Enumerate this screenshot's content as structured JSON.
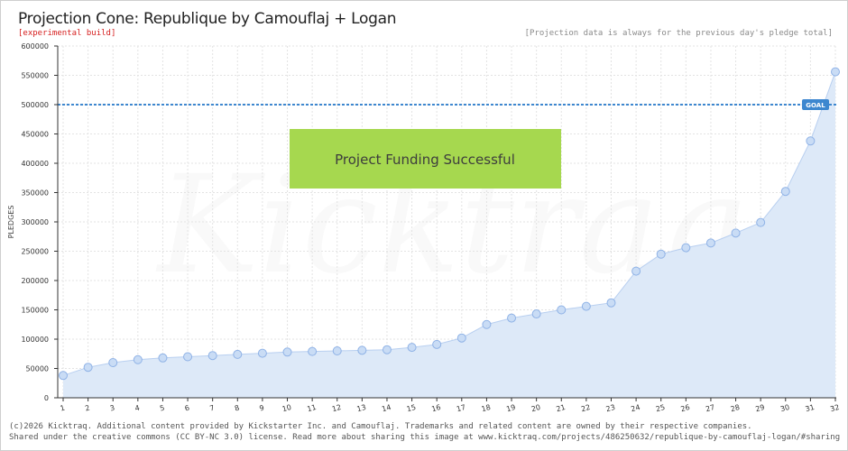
{
  "header": {
    "title": "Projection Cone: Republique by Camouflaj + Logan",
    "subtitle": "[experimental build]",
    "note": "[Projection data is always for the previous day's pledge total]"
  },
  "banner": {
    "text": "Project Funding Successful",
    "color": "#a6d84f"
  },
  "goal": {
    "label": "GOAL",
    "value": 500000,
    "color": "#3d87cf"
  },
  "colors": {
    "area": "#dde9f8",
    "line": "#b8cff0",
    "point_fill": "#c9dcf5",
    "point_stroke": "#8fb2e6",
    "grid": "#e3e3e3"
  },
  "watermark": "Kicktraq",
  "footer": {
    "line1": "(c)2026 Kicktraq. Additional content provided by Kickstarter Inc. and Camouflaj. Trademarks and related content are owned by their respective companies.",
    "line2": "Shared under the creative commons (CC BY-NC 3.0) license. Read more about sharing this image at www.kicktraq.com/projects/486250632/republique-by-camouflaj-logan/#sharing"
  },
  "chart_data": {
    "type": "area",
    "title": "Projection Cone: Republique by Camouflaj + Logan",
    "ylabel": "PLEDGES",
    "xlabel": "",
    "ylim": [
      0,
      600000
    ],
    "yticks": [
      0,
      50000,
      100000,
      150000,
      200000,
      250000,
      300000,
      350000,
      400000,
      450000,
      500000,
      550000,
      600000
    ],
    "grid": true,
    "x": [
      1,
      2,
      3,
      4,
      5,
      6,
      7,
      8,
      9,
      10,
      11,
      12,
      13,
      14,
      15,
      16,
      17,
      18,
      19,
      20,
      21,
      22,
      23,
      24,
      25,
      26,
      27,
      28,
      29,
      30,
      31,
      32
    ],
    "series": [
      {
        "values": [
          38000,
          52000,
          60000,
          65000,
          68000,
          70000,
          72000,
          74000,
          76000,
          78000,
          79000,
          80000,
          81000,
          82000,
          86000,
          91000,
          102000,
          125000,
          136000,
          143000,
          150000,
          156000,
          162000,
          216000,
          245000,
          256000,
          264000,
          281000,
          299000,
          352000,
          438000,
          556000
        ]
      }
    ]
  }
}
